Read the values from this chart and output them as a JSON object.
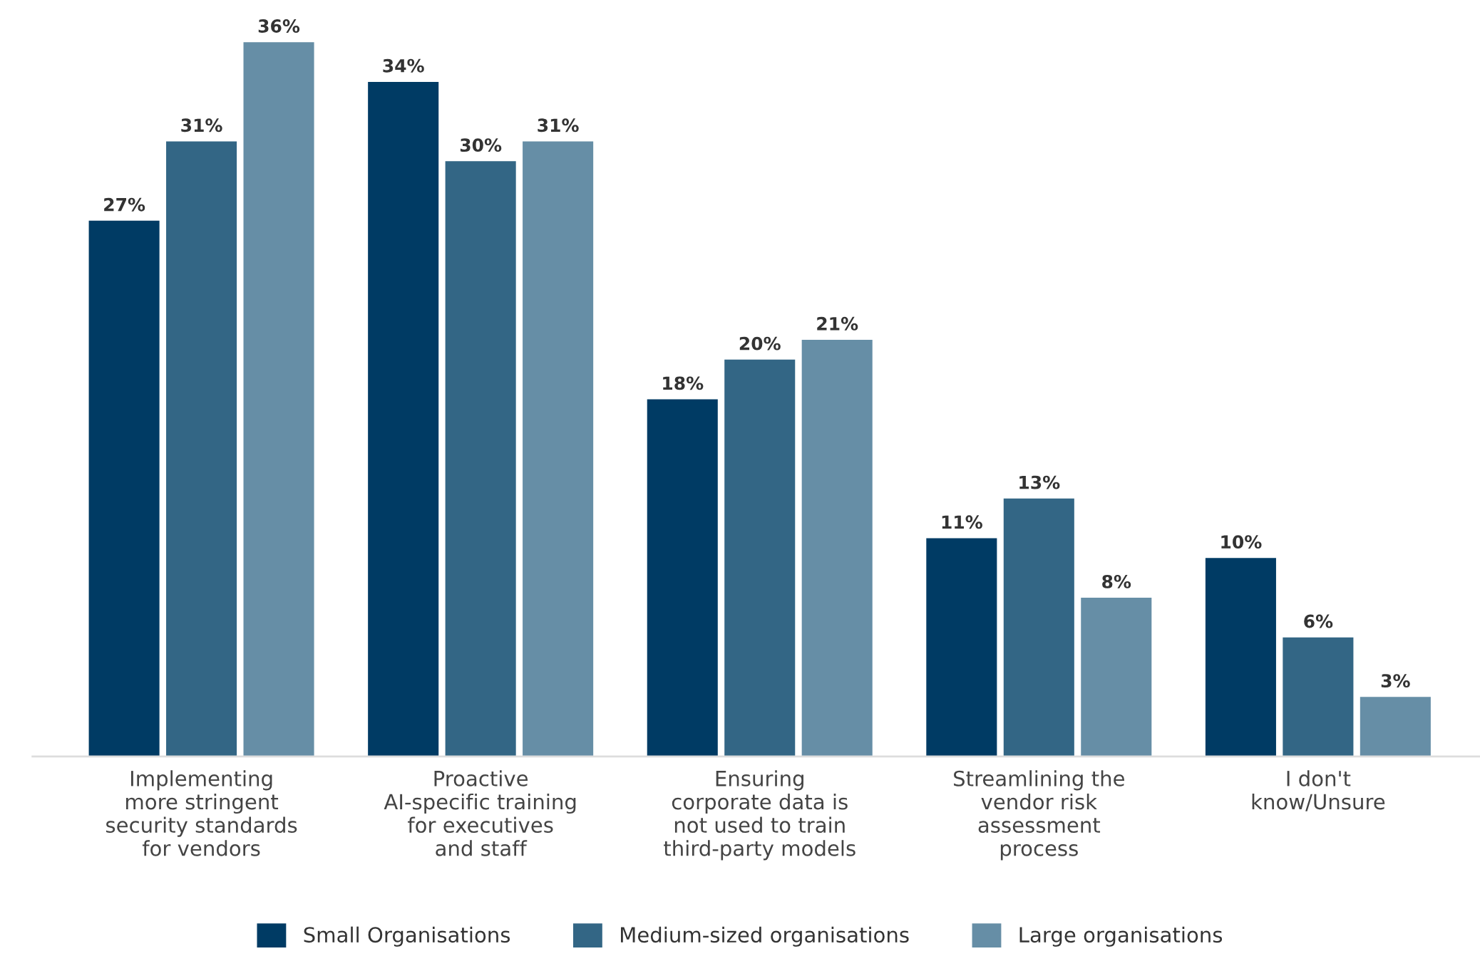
{
  "chart_data": {
    "type": "bar",
    "categories": [
      "Implementing\nmore stringent\nsecurity standards\nfor vendors",
      "Proactive\nAI-specific training\nfor executives\nand staff",
      "Ensuring\ncorporate data is\nnot used to train\nthird-party models",
      "Streamlining the\nvendor risk\nassessment\nprocess",
      "I don't\nknow/Unsure"
    ],
    "series": [
      {
        "name": "Small Organisations",
        "color": "#003b64",
        "values": [
          27,
          34,
          18,
          11,
          10
        ],
        "value_labels": [
          "27%",
          "34%",
          "18%",
          "11%",
          "10%"
        ]
      },
      {
        "name": "Medium-sized organisations",
        "color": "#336685",
        "values": [
          31,
          30,
          20,
          13,
          6
        ],
        "value_labels": [
          "31%",
          "30%",
          "20%",
          "13%",
          "6%"
        ]
      },
      {
        "name": "Large organisations",
        "color": "#668ea6",
        "values": [
          36,
          31,
          21,
          8,
          3
        ],
        "value_labels": [
          "36%",
          "31%",
          "21%",
          "8%",
          "3%"
        ]
      }
    ],
    "legend": "bottom",
    "grid": false
  }
}
